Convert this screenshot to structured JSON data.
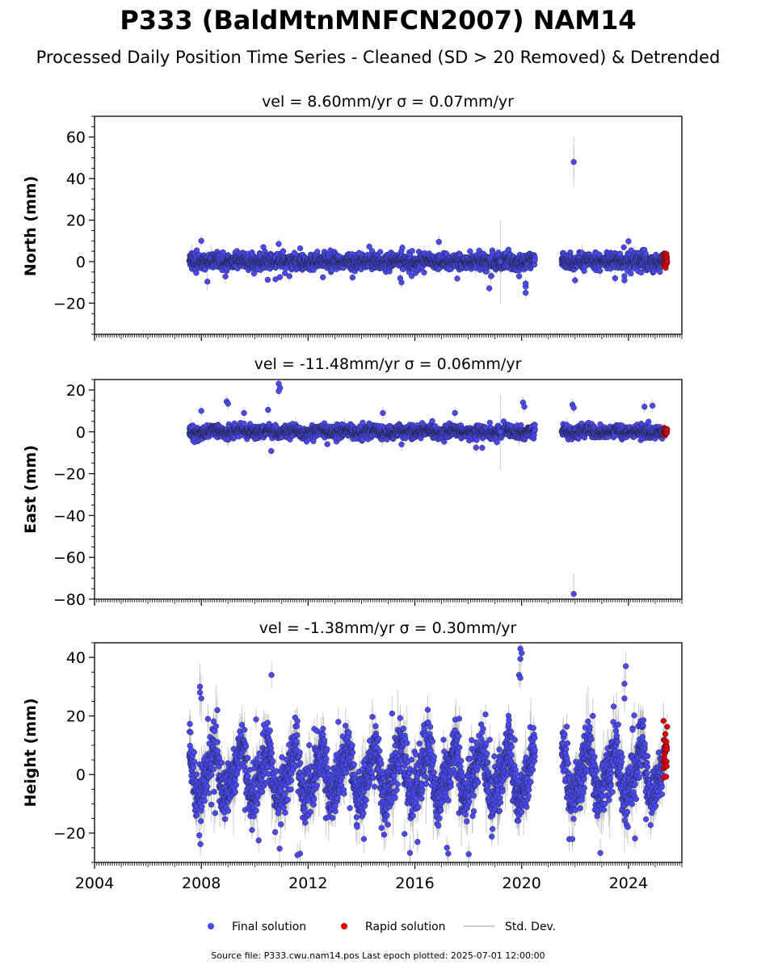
{
  "title": "P333 (BaldMtnMNFCN2007) NAM14",
  "subtitle": "Processed Daily Position Time Series - Cleaned (SD > 20 Removed) & Detrended",
  "footer": "Source file: P333.cwu.nam14.pos  Last epoch plotted: 2025-07-01 12:00:00",
  "legend": {
    "final": "Final solution",
    "rapid": "Rapid solution",
    "std": "Std. Dev."
  },
  "colors": {
    "final": "#4a4af0",
    "rapid": "#e00000",
    "std": "#bdbdbd",
    "marker_edge": "#222244"
  },
  "chart_data": [
    {
      "type": "scatter",
      "title": "vel = 8.60mm/yr   σ = 0.07mm/yr",
      "ylabel": "North (mm)",
      "xlim": [
        2004.0,
        2026.0
      ],
      "ylim": [
        -35,
        70
      ],
      "yticks": [
        -20,
        0,
        20,
        40,
        60
      ],
      "yminor": 5,
      "show_xlabels": false,
      "xticks": [
        2004,
        2008,
        2012,
        2016,
        2020,
        2024
      ],
      "segments": [
        [
          2007.55,
          2020.5
        ],
        [
          2021.5,
          2025.45
        ]
      ],
      "rapid_range": [
        2025.3,
        2025.5
      ],
      "noise": {
        "amp": 1.8,
        "seasonal": 0.5,
        "std": 1.3,
        "spikes": 0.2
      },
      "outliers": [
        {
          "x": 2021.95,
          "y": 48.0,
          "sd": 12
        },
        {
          "x": 2020.15,
          "y": -15.0,
          "sd": 3
        },
        {
          "x": 2020.15,
          "y": -12.0,
          "sd": 3
        },
        {
          "x": 2020.15,
          "y": -10.5,
          "sd": 3
        },
        {
          "x": 2015.5,
          "y": -10.0,
          "sd": 3
        },
        {
          "x": 2015.45,
          "y": -8.0,
          "sd": 3
        },
        {
          "x": 2018.85,
          "y": -7.0,
          "sd": 4
        },
        {
          "x": 2019.2,
          "y": 0.0,
          "sd": 20
        },
        {
          "x": 2022.0,
          "y": -9.0,
          "sd": 3
        },
        {
          "x": 2023.85,
          "y": -9.0,
          "sd": 3
        },
        {
          "x": 2023.5,
          "y": -8.0,
          "sd": 3
        },
        {
          "x": 2011.3,
          "y": -7.0,
          "sd": 3
        },
        {
          "x": 2016.9,
          "y": 9.5,
          "sd": 3
        },
        {
          "x": 2024.0,
          "y": 9.8,
          "sd": 3
        },
        {
          "x": 2008.0,
          "y": 10.0,
          "sd": 3
        },
        {
          "x": 2010.9,
          "y": 8.5,
          "sd": 3
        }
      ]
    },
    {
      "type": "scatter",
      "title": "vel = -11.48mm/yr   σ = 0.06mm/yr",
      "ylabel": "East (mm)",
      "xlim": [
        2004.0,
        2026.0
      ],
      "ylim": [
        -80,
        25
      ],
      "yticks": [
        -80,
        -60,
        -40,
        -20,
        0,
        20
      ],
      "yminor": 5,
      "show_xlabels": false,
      "xticks": [
        2004,
        2008,
        2012,
        2016,
        2020,
        2024
      ],
      "segments": [
        [
          2007.55,
          2020.5
        ],
        [
          2021.5,
          2025.45
        ]
      ],
      "rapid_range": [
        2025.3,
        2025.5
      ],
      "noise": {
        "amp": 1.4,
        "seasonal": 0.6,
        "std": 1.2,
        "spikes": 0.25
      },
      "outliers": [
        {
          "x": 2021.95,
          "y": -77.5,
          "sd": 10
        },
        {
          "x": 2010.9,
          "y": 23.0,
          "sd": 3
        },
        {
          "x": 2010.95,
          "y": 21.0,
          "sd": 3
        },
        {
          "x": 2010.9,
          "y": 19.5,
          "sd": 3
        },
        {
          "x": 2008.95,
          "y": 14.5,
          "sd": 3
        },
        {
          "x": 2009.0,
          "y": 13.5,
          "sd": 3
        },
        {
          "x": 2020.05,
          "y": 14.0,
          "sd": 3
        },
        {
          "x": 2020.1,
          "y": 12.0,
          "sd": 3
        },
        {
          "x": 2021.9,
          "y": 13.0,
          "sd": 3
        },
        {
          "x": 2021.95,
          "y": 11.5,
          "sd": 3
        },
        {
          "x": 2024.9,
          "y": 12.5,
          "sd": 3
        },
        {
          "x": 2024.6,
          "y": 12.0,
          "sd": 3
        },
        {
          "x": 2019.2,
          "y": 0.0,
          "sd": 18
        },
        {
          "x": 2015.5,
          "y": -6.0,
          "sd": 3
        },
        {
          "x": 2010.5,
          "y": 10.5,
          "sd": 3
        },
        {
          "x": 2008.0,
          "y": 10.0,
          "sd": 3
        },
        {
          "x": 2009.6,
          "y": 9.0,
          "sd": 3
        },
        {
          "x": 2017.5,
          "y": 9.0,
          "sd": 3
        },
        {
          "x": 2014.8,
          "y": 9.0,
          "sd": 3
        }
      ]
    },
    {
      "type": "scatter",
      "title": "vel = -1.38mm/yr   σ = 0.30mm/yr",
      "ylabel": "Height (mm)",
      "xlim": [
        2004.0,
        2026.0
      ],
      "ylim": [
        -30,
        45
      ],
      "yticks": [
        -20,
        0,
        20,
        40
      ],
      "yminor": 5,
      "show_xlabels": true,
      "xticks": [
        2004,
        2008,
        2012,
        2016,
        2020,
        2024
      ],
      "segments": [
        [
          2007.55,
          2020.5
        ],
        [
          2021.5,
          2025.45
        ]
      ],
      "rapid_range": [
        2025.3,
        2025.5
      ],
      "noise": {
        "amp": 4.5,
        "seasonal": 8.0,
        "std": 4.5,
        "spikes": 0.6
      },
      "outliers": [
        {
          "x": 2019.95,
          "y": 43.0,
          "sd": 4
        },
        {
          "x": 2020.0,
          "y": 41.5,
          "sd": 4
        },
        {
          "x": 2019.95,
          "y": 39.5,
          "sd": 4
        },
        {
          "x": 2019.9,
          "y": 34.0,
          "sd": 4
        },
        {
          "x": 2019.95,
          "y": 33.0,
          "sd": 4
        },
        {
          "x": 2023.9,
          "y": 37.0,
          "sd": 5
        },
        {
          "x": 2023.85,
          "y": 31.0,
          "sd": 5
        },
        {
          "x": 2023.85,
          "y": 26.0,
          "sd": 5
        },
        {
          "x": 2007.95,
          "y": 30.0,
          "sd": 8
        },
        {
          "x": 2007.95,
          "y": 28.0,
          "sd": 8
        },
        {
          "x": 2008.0,
          "y": 26.0,
          "sd": 8
        },
        {
          "x": 2008.6,
          "y": 22.0,
          "sd": 5
        },
        {
          "x": 2011.7,
          "y": -27.0,
          "sd": 4
        },
        {
          "x": 2011.6,
          "y": -27.5,
          "sd": 4
        },
        {
          "x": 2017.25,
          "y": -27.0,
          "sd": 4
        },
        {
          "x": 2017.2,
          "y": -25.0,
          "sd": 4
        },
        {
          "x": 2021.9,
          "y": -22.0,
          "sd": 4
        },
        {
          "x": 2010.15,
          "y": -22.5,
          "sd": 4
        },
        {
          "x": 2016.1,
          "y": -23.0,
          "sd": 4
        }
      ]
    }
  ]
}
